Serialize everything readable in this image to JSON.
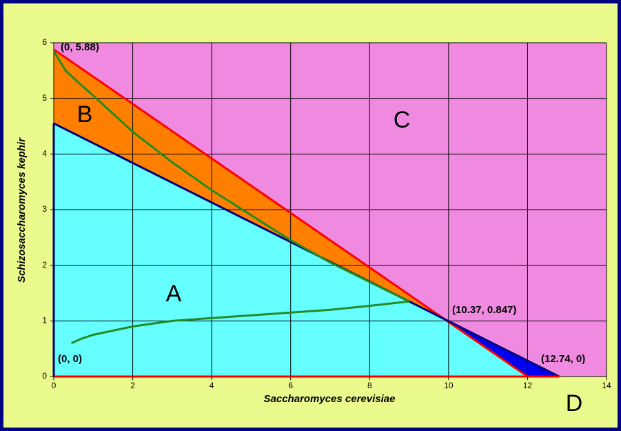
{
  "chart_data": {
    "type": "region",
    "x_label": "Saccharomyces cerevisiae",
    "y_label": "Schizosaccharomyces kephir",
    "xlim": [
      0,
      14
    ],
    "ylim": [
      0,
      6
    ],
    "xticks": [
      0,
      2,
      4,
      6,
      8,
      10,
      12,
      14
    ],
    "yticks": [
      0,
      1,
      2,
      3,
      4,
      5,
      6
    ],
    "grid": true,
    "regions": [
      {
        "label": "C",
        "color": "#f08ae0",
        "x": [
          0,
          0,
          14,
          14,
          12.8,
          10
        ],
        "y": [
          5.88,
          6,
          6,
          0,
          0,
          1
        ]
      },
      {
        "label": "A",
        "color": "#66ffff",
        "x": [
          0,
          0,
          10,
          12
        ],
        "y": [
          0,
          4.55,
          1,
          0
        ]
      },
      {
        "label": "B",
        "color": "#ff8000",
        "x": [
          0,
          10,
          0
        ],
        "y": [
          5.88,
          1,
          4.55
        ]
      },
      {
        "label": "D",
        "color": "#0000ee",
        "x": [
          10,
          12,
          12.8
        ],
        "y": [
          1,
          0,
          0
        ]
      }
    ],
    "series": [
      {
        "color": "#ff0000",
        "x": [
          0,
          12
        ],
        "y": [
          5.88,
          0
        ]
      },
      {
        "color": "#000080",
        "x": [
          0,
          12.8
        ],
        "y": [
          4.55,
          0
        ]
      },
      {
        "color": "#ff0000",
        "x": [
          0,
          12.8
        ],
        "y": [
          0,
          0
        ]
      },
      {
        "color": "#000080",
        "x": [
          0,
          0
        ],
        "y": [
          0,
          4.55
        ]
      },
      {
        "color": "#228b22",
        "x": [
          0,
          0.3,
          0.6,
          1,
          2,
          3,
          4,
          5,
          6,
          7,
          8,
          9
        ],
        "y": [
          5.85,
          5.5,
          5.3,
          5.05,
          4.4,
          3.85,
          3.35,
          2.9,
          2.45,
          2.05,
          1.7,
          1.35
        ]
      },
      {
        "color": "#228b22",
        "x": [
          0.45,
          0.7,
          1,
          2,
          3,
          4,
          5,
          6,
          7,
          8,
          9
        ],
        "y": [
          0.6,
          0.68,
          0.75,
          0.9,
          1,
          1.05,
          1.1,
          1.15,
          1.2,
          1.27,
          1.35
        ]
      }
    ],
    "annotations": [
      "(0, 5.88)",
      "(10.37, 0.847)",
      "(0, 0)",
      "(12.74, 0)"
    ]
  }
}
